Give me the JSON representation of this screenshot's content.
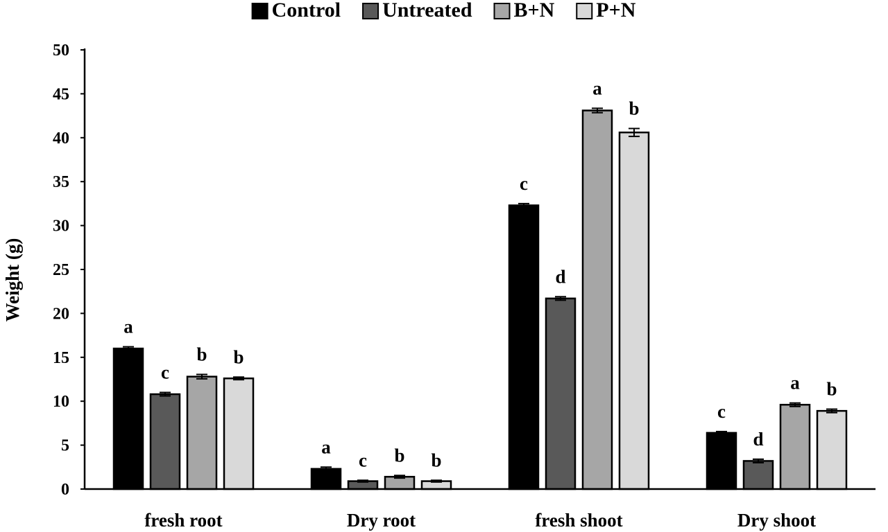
{
  "chart_data": {
    "type": "bar",
    "title": "",
    "xlabel": "",
    "ylabel": "Weight (g)",
    "ylim": [
      0,
      50
    ],
    "yticks": [
      0,
      5,
      10,
      15,
      20,
      25,
      30,
      35,
      40,
      45,
      50
    ],
    "grid": false,
    "legend_position": "top-center",
    "categories": [
      "fresh root",
      "Dry root",
      "fresh shoot",
      "Dry shoot"
    ],
    "series": [
      {
        "name": "Control",
        "color": "#000000",
        "values": [
          16.0,
          2.3,
          32.3,
          6.4
        ],
        "errors": [
          0.2,
          0.2,
          0.2,
          0.15
        ],
        "letters": [
          "a",
          "a",
          "c",
          "c"
        ]
      },
      {
        "name": "Untreated",
        "color": "#595959",
        "values": [
          10.8,
          0.9,
          21.7,
          3.2
        ],
        "errors": [
          0.2,
          0.1,
          0.2,
          0.2
        ],
        "letters": [
          "c",
          "c",
          "d",
          "d"
        ]
      },
      {
        "name": "B+N",
        "color": "#a6a6a6",
        "values": [
          12.8,
          1.4,
          43.1,
          9.6
        ],
        "errors": [
          0.25,
          0.15,
          0.25,
          0.2
        ],
        "letters": [
          "b",
          "b",
          "a",
          "a"
        ]
      },
      {
        "name": "P+N",
        "color": "#d9d9d9",
        "values": [
          12.6,
          0.9,
          40.6,
          8.9
        ],
        "errors": [
          0.15,
          0.1,
          0.45,
          0.2
        ],
        "letters": [
          "b",
          "b",
          "b",
          "b"
        ]
      }
    ]
  }
}
